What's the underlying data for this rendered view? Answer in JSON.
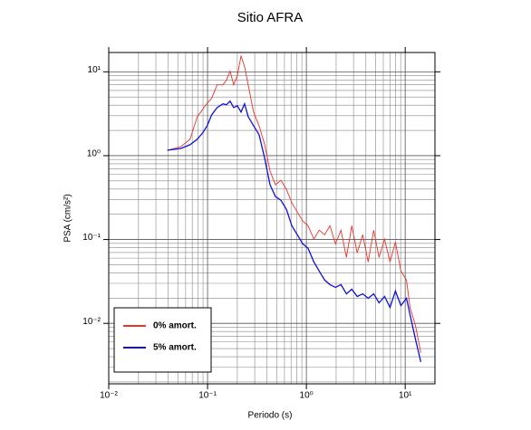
{
  "chart_data": {
    "type": "line",
    "title": "Sitio AFRA",
    "xlabel": "Periodo (s)",
    "ylabel": "PSA (cm/s²)",
    "log_x": true,
    "log_y": true,
    "grid": true,
    "minor_grid": true,
    "legend": "lower left",
    "xlim": [
      0.01,
      20
    ],
    "ylim": [
      0.0019,
      17
    ],
    "xticks": [
      {
        "value": 0.01,
        "label": "10⁻²"
      },
      {
        "value": 0.1,
        "label": "10⁻¹"
      },
      {
        "value": 1,
        "label": "10⁰"
      },
      {
        "value": 10,
        "label": "10¹"
      }
    ],
    "yticks": [
      {
        "value": 0.01,
        "label": "10⁻²"
      },
      {
        "value": 0.1,
        "label": "10⁻¹"
      },
      {
        "value": 1,
        "label": "10⁰"
      },
      {
        "value": 10,
        "label": "10¹"
      }
    ],
    "x": [
      0.0391,
      0.0537,
      0.0664,
      0.0787,
      0.0893,
      0.0993,
      0.11,
      0.125,
      0.143,
      0.155,
      0.169,
      0.184,
      0.2,
      0.218,
      0.237,
      0.258,
      0.292,
      0.332,
      0.377,
      0.429,
      0.487,
      0.552,
      0.628,
      0.713,
      0.809,
      0.919,
      1.04,
      1.19,
      1.35,
      1.53,
      1.73,
      1.97,
      2.24,
      2.54,
      2.88,
      3.27,
      3.72,
      4.22,
      4.8,
      5.44,
      6.18,
      7.02,
      7.97,
      9.05,
      10.3,
      11.2,
      12.7,
      14.4
    ],
    "series": [
      {
        "name": "0% amort.",
        "color": "#e8322a",
        "values": [
          1.16,
          1.28,
          1.57,
          2.92,
          3.57,
          4.25,
          4.82,
          7.0,
          7.0,
          7.93,
          10.2,
          7.0,
          8.98,
          15.6,
          11.5,
          7.0,
          3.31,
          2.28,
          1.38,
          0.654,
          0.45,
          0.51,
          0.397,
          0.273,
          0.213,
          0.166,
          0.146,
          0.101,
          0.129,
          0.114,
          0.146,
          0.0889,
          0.129,
          0.0612,
          0.146,
          0.0693,
          0.114,
          0.054,
          0.129,
          0.0612,
          0.101,
          0.054,
          0.0935,
          0.0421,
          0.0328,
          0.0155,
          0.00942,
          0.00446
        ]
      },
      {
        "name": "5% amort.",
        "color": "#1010d8",
        "values": [
          1.16,
          1.22,
          1.35,
          1.57,
          1.87,
          2.28,
          3.07,
          3.75,
          4.15,
          4.04,
          4.47,
          3.75,
          3.94,
          3.31,
          4.15,
          2.92,
          2.28,
          1.78,
          0.95,
          0.45,
          0.325,
          0.294,
          0.229,
          0.146,
          0.114,
          0.0889,
          0.0785,
          0.054,
          0.0421,
          0.0328,
          0.029,
          0.0269,
          0.029,
          0.0225,
          0.0255,
          0.0209,
          0.0225,
          0.0199,
          0.0225,
          0.0176,
          0.0209,
          0.0155,
          0.0243,
          0.0163,
          0.0199,
          0.0127,
          0.00648,
          0.00347
        ]
      }
    ]
  }
}
